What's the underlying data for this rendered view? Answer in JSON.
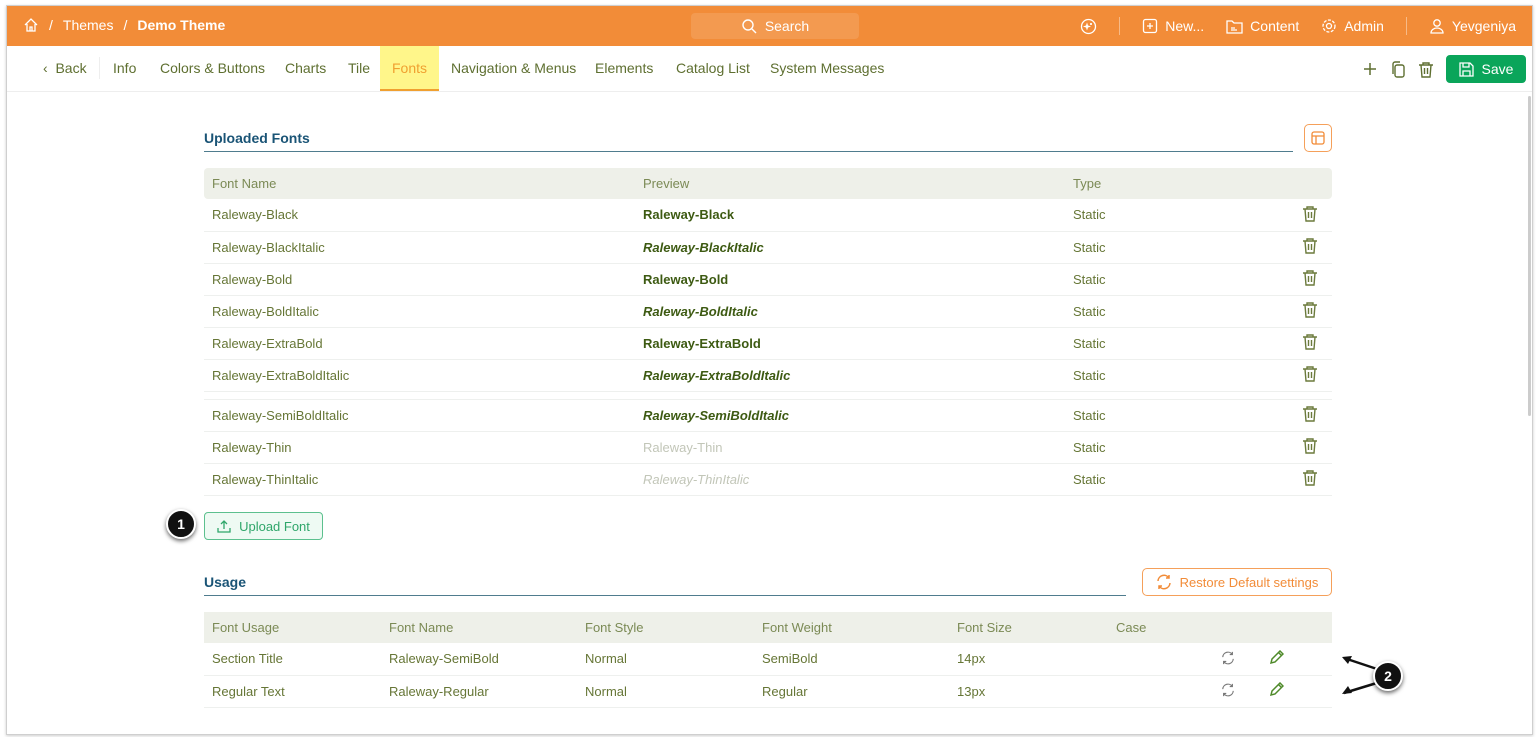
{
  "colors": {
    "header": "#f28c38",
    "accent_green": "#0aa55a",
    "title": "#1a5476"
  },
  "topbar": {
    "breadcrumb": [
      "Themes",
      "Demo Theme"
    ],
    "search": "Search",
    "new": "New...",
    "content": "Content",
    "admin": "Admin",
    "user": "Yevgeniya"
  },
  "nav": {
    "back": "Back",
    "tabs": [
      "Info",
      "Colors & Buttons",
      "Charts",
      "Tile",
      "Fonts",
      "Navigation & Menus",
      "Elements",
      "Catalog List",
      "System Messages"
    ],
    "active": "Fonts",
    "save": "Save"
  },
  "uploaded": {
    "title": "Uploaded Fonts",
    "columns": [
      "Font Name",
      "Preview",
      "Type"
    ],
    "rows": [
      {
        "name": "Raleway-Black",
        "preview": "Raleway-Black",
        "type": "Static"
      },
      {
        "name": "Raleway-BlackItalic",
        "preview": "Raleway-BlackItalic",
        "type": "Static"
      },
      {
        "name": "Raleway-Bold",
        "preview": "Raleway-Bold",
        "type": "Static"
      },
      {
        "name": "Raleway-BoldItalic",
        "preview": "Raleway-BoldItalic",
        "type": "Static"
      },
      {
        "name": "Raleway-ExtraBold",
        "preview": "Raleway-ExtraBold",
        "type": "Static"
      },
      {
        "name": "Raleway-ExtraBoldItalic",
        "preview": "Raleway-ExtraBoldItalic",
        "type": "Static"
      },
      {
        "name": "Raleway-SemiBoldItalic",
        "preview": "Raleway-SemiBoldItalic",
        "type": "Static"
      },
      {
        "name": "Raleway-Thin",
        "preview": "Raleway-Thin",
        "type": "Static"
      },
      {
        "name": "Raleway-ThinItalic",
        "preview": "Raleway-ThinItalic",
        "type": "Static"
      }
    ],
    "upload_button": "Upload Font"
  },
  "usage": {
    "title": "Usage",
    "restore_button": "Restore Default settings",
    "columns": [
      "Font Usage",
      "Font Name",
      "Font Style",
      "Font Weight",
      "Font Size",
      "Case"
    ],
    "rows": [
      {
        "usage": "Section Title",
        "name": "Raleway-SemiBold",
        "style": "Normal",
        "weight": "SemiBold",
        "size": "14px",
        "case": ""
      },
      {
        "usage": "Regular Text",
        "name": "Raleway-Regular",
        "style": "Normal",
        "weight": "Regular",
        "size": "13px",
        "case": ""
      }
    ]
  },
  "callouts": [
    "1",
    "2"
  ]
}
